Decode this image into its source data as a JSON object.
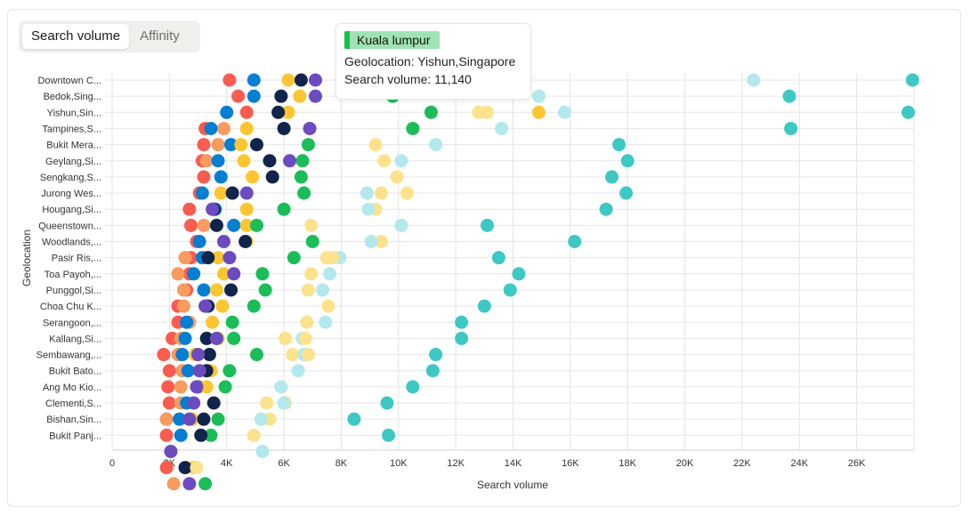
{
  "toggle": {
    "items": [
      {
        "label": "Search volume",
        "active": true
      },
      {
        "label": "Affinity",
        "active": false
      }
    ]
  },
  "tooltip": {
    "badge": "Kuala lumpur",
    "badge_color": "#9fe3b3",
    "badge_bar_color": "#1dbf4f",
    "line1": "Geolocation: Yishun,Singapore",
    "line2": "Search volume: 11,140"
  },
  "chart_data": {
    "type": "scatter",
    "xlabel": "Search volume",
    "ylabel": "Geolocation",
    "xlim": [
      0,
      28000
    ],
    "xticks": [
      0,
      2000,
      4000,
      6000,
      8000,
      10000,
      12000,
      14000,
      16000,
      18000,
      20000,
      22000,
      24000,
      26000
    ],
    "xtick_labels": [
      "0",
      "2K",
      "4K",
      "6K",
      "8K",
      "10K",
      "12K",
      "14K",
      "16K",
      "18K",
      "20K",
      "22K",
      "24K",
      "26K"
    ],
    "categories": [
      "Downtown C...",
      "Bedok,Sing...",
      "Yishun,Sin...",
      "Tampines,S...",
      "Bukit Mera...",
      "Geylang,Si...",
      "Sengkang,S...",
      "Jurong Wes...",
      "Hougang,Si...",
      "Queenstown...",
      "Woodlands,...",
      "Pasir Ris,...",
      "Toa Payoh,...",
      "Punggol,Si...",
      "Choa Chu K...",
      "Serangoon,...",
      "Kallang,Si...",
      "Sembawang,...",
      "Bukit Bato...",
      "Ang Mo Kio...",
      "Clementi,S...",
      "Bishan,Sin...",
      "Bukit Panj...",
      "",
      "",
      ""
    ],
    "series": [
      {
        "name": "s1",
        "color": "#fa5c4f",
        "values": [
          4100,
          4400,
          4700,
          3250,
          3200,
          3150,
          3200,
          3050,
          2700,
          2750,
          2950,
          2750,
          2700,
          2600,
          2300,
          2300,
          2100,
          1800,
          2000,
          1950,
          2000,
          1900,
          1900,
          null,
          1900,
          null
        ]
      },
      {
        "name": "s2",
        "color": "#f89b5e",
        "values": [
          null,
          null,
          null,
          3900,
          3700,
          3300,
          null,
          null,
          null,
          3200,
          null,
          2550,
          2300,
          2500,
          2500,
          2700,
          2400,
          2300,
          2450,
          2400,
          2400,
          1900,
          null,
          null,
          null,
          2150
        ]
      },
      {
        "name": "s3",
        "color": "#067ed2",
        "values": [
          4950,
          4950,
          4000,
          3450,
          4150,
          3700,
          3800,
          3150,
          3600,
          4250,
          3050,
          3150,
          2850,
          3200,
          3300,
          2600,
          2550,
          2450,
          2650,
          3000,
          2600,
          2350,
          2400,
          null,
          null,
          null
        ]
      },
      {
        "name": "s4",
        "color": "#8a8ddc",
        "values": [
          null,
          null,
          null,
          null,
          null,
          null,
          null,
          null,
          null,
          null,
          null,
          null,
          null,
          null,
          null,
          null,
          null,
          null,
          null,
          null,
          null,
          null,
          null,
          null,
          null,
          null
        ]
      },
      {
        "name": "s5",
        "color": "#fcc532",
        "values": [
          6150,
          6550,
          6150,
          4700,
          4500,
          4600,
          4900,
          3800,
          4700,
          4700,
          4700,
          3700,
          3900,
          3650,
          3850,
          3500,
          3700,
          2900,
          3450,
          3300,
          null,
          2800,
          null,
          null,
          2850,
          null
        ]
      },
      {
        "name": "s6",
        "color": "#1bbd58",
        "values": [
          null,
          9800,
          11140,
          10500,
          6850,
          6650,
          6600,
          6700,
          6000,
          5050,
          7000,
          6350,
          5250,
          5350,
          4950,
          4200,
          4250,
          5050,
          4100,
          3950,
          null,
          3700,
          3450,
          null,
          null,
          3250
        ]
      },
      {
        "name": "s7",
        "color": "#11254b",
        "values": [
          6600,
          5900,
          5800,
          6000,
          5050,
          5500,
          5600,
          4200,
          3550,
          3650,
          4650,
          3350,
          null,
          4150,
          3350,
          null,
          3300,
          3400,
          3300,
          null,
          3550,
          3200,
          3100,
          null,
          2550,
          null
        ]
      },
      {
        "name": "s8",
        "color": "#6b4bbf",
        "values": [
          7100,
          7100,
          null,
          6900,
          null,
          6200,
          null,
          4700,
          3500,
          null,
          3900,
          4100,
          4250,
          null,
          3250,
          null,
          3650,
          3000,
          3050,
          2950,
          2850,
          2700,
          null,
          2050,
          null,
          2700
        ]
      },
      {
        "name": "s9",
        "color": "#fde28c",
        "values": [
          null,
          null,
          13100,
          null,
          9200,
          9500,
          9950,
          9400,
          9200,
          6950,
          9400,
          7500,
          6950,
          6850,
          7550,
          null,
          6050,
          6300,
          null,
          null,
          6050,
          5500,
          4950,
          null,
          2950,
          null
        ]
      },
      {
        "name": "s10",
        "color": "#b3e8ec",
        "values": [
          22400,
          14900,
          15800,
          13600,
          11300,
          10100,
          null,
          8900,
          8950,
          10100,
          9050,
          7950,
          7600,
          7350,
          null,
          7450,
          6650,
          6700,
          6500,
          5900,
          6000,
          5200,
          null,
          5250,
          null,
          null
        ]
      },
      {
        "name": "s11",
        "color": "#3ec8c4",
        "values": [
          27950,
          23650,
          27800,
          23700,
          17700,
          18000,
          17450,
          17950,
          17250,
          13100,
          16150,
          13500,
          14200,
          13900,
          13000,
          12200,
          12200,
          11300,
          11200,
          10500,
          9600,
          8450,
          9650,
          null,
          null,
          null
        ]
      },
      {
        "name": "s12",
        "color": "#fde28c",
        "values": [
          null,
          null,
          12800,
          null,
          null,
          null,
          null,
          10300,
          null,
          null,
          null,
          7700,
          null,
          null,
          null,
          6800,
          6750,
          6850,
          null,
          null,
          5400,
          null,
          null,
          null,
          null,
          null
        ]
      },
      {
        "name": "s13",
        "color": "#fcc532",
        "values": [
          null,
          null,
          14900,
          null,
          null,
          null,
          null,
          null,
          null,
          null,
          null,
          null,
          null,
          null,
          null,
          null,
          null,
          null,
          null,
          null,
          null,
          null,
          null,
          null,
          null,
          null
        ]
      }
    ]
  }
}
